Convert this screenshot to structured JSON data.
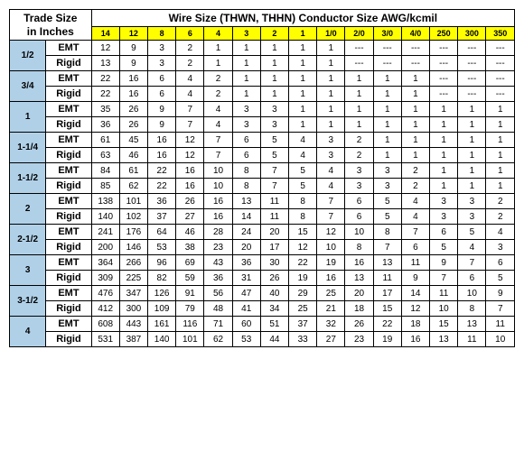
{
  "title_left": "Trade Size\nin Inches",
  "title_right": "Wire Size (THWN, THHN) Conductor Size AWG/kcmil",
  "wire_sizes": [
    "14",
    "12",
    "8",
    "6",
    "4",
    "3",
    "2",
    "1",
    "1/0",
    "2/0",
    "3/0",
    "4/0",
    "250",
    "300",
    "350"
  ],
  "colors": {
    "header_bg": "#ffff00",
    "trade_bg": "#b0d0e8",
    "border": "#000000"
  },
  "groups": [
    {
      "trade": "1/2",
      "rows": [
        {
          "type": "EMT",
          "vals": [
            "12",
            "9",
            "3",
            "2",
            "1",
            "1",
            "1",
            "1",
            "1",
            "---",
            "---",
            "---",
            "---",
            "---",
            "---"
          ]
        },
        {
          "type": "Rigid",
          "vals": [
            "13",
            "9",
            "3",
            "2",
            "1",
            "1",
            "1",
            "1",
            "1",
            "---",
            "---",
            "---",
            "---",
            "---",
            "---"
          ]
        }
      ]
    },
    {
      "trade": "3/4",
      "rows": [
        {
          "type": "EMT",
          "vals": [
            "22",
            "16",
            "6",
            "4",
            "2",
            "1",
            "1",
            "1",
            "1",
            "1",
            "1",
            "1",
            "---",
            "---",
            "---"
          ]
        },
        {
          "type": "Rigid",
          "vals": [
            "22",
            "16",
            "6",
            "4",
            "2",
            "1",
            "1",
            "1",
            "1",
            "1",
            "1",
            "1",
            "---",
            "---",
            "---"
          ]
        }
      ]
    },
    {
      "trade": "1",
      "rows": [
        {
          "type": "EMT",
          "vals": [
            "35",
            "26",
            "9",
            "7",
            "4",
            "3",
            "3",
            "1",
            "1",
            "1",
            "1",
            "1",
            "1",
            "1",
            "1"
          ]
        },
        {
          "type": "Rigid",
          "vals": [
            "36",
            "26",
            "9",
            "7",
            "4",
            "3",
            "3",
            "1",
            "1",
            "1",
            "1",
            "1",
            "1",
            "1",
            "1"
          ]
        }
      ]
    },
    {
      "trade": "1-1/4",
      "rows": [
        {
          "type": "EMT",
          "vals": [
            "61",
            "45",
            "16",
            "12",
            "7",
            "6",
            "5",
            "4",
            "3",
            "2",
            "1",
            "1",
            "1",
            "1",
            "1"
          ]
        },
        {
          "type": "Rigid",
          "vals": [
            "63",
            "46",
            "16",
            "12",
            "7",
            "6",
            "5",
            "4",
            "3",
            "2",
            "1",
            "1",
            "1",
            "1",
            "1"
          ]
        }
      ]
    },
    {
      "trade": "1-1/2",
      "rows": [
        {
          "type": "EMT",
          "vals": [
            "84",
            "61",
            "22",
            "16",
            "10",
            "8",
            "7",
            "5",
            "4",
            "3",
            "3",
            "2",
            "1",
            "1",
            "1"
          ]
        },
        {
          "type": "Rigid",
          "vals": [
            "85",
            "62",
            "22",
            "16",
            "10",
            "8",
            "7",
            "5",
            "4",
            "3",
            "3",
            "2",
            "1",
            "1",
            "1"
          ]
        }
      ]
    },
    {
      "trade": "2",
      "rows": [
        {
          "type": "EMT",
          "vals": [
            "138",
            "101",
            "36",
            "26",
            "16",
            "13",
            "11",
            "8",
            "7",
            "6",
            "5",
            "4",
            "3",
            "3",
            "2"
          ]
        },
        {
          "type": "Rigid",
          "vals": [
            "140",
            "102",
            "37",
            "27",
            "16",
            "14",
            "11",
            "8",
            "7",
            "6",
            "5",
            "4",
            "3",
            "3",
            "2"
          ]
        }
      ]
    },
    {
      "trade": "2-1/2",
      "rows": [
        {
          "type": "EMT",
          "vals": [
            "241",
            "176",
            "64",
            "46",
            "28",
            "24",
            "20",
            "15",
            "12",
            "10",
            "8",
            "7",
            "6",
            "5",
            "4"
          ]
        },
        {
          "type": "Rigid",
          "vals": [
            "200",
            "146",
            "53",
            "38",
            "23",
            "20",
            "17",
            "12",
            "10",
            "8",
            "7",
            "6",
            "5",
            "4",
            "3"
          ]
        }
      ]
    },
    {
      "trade": "3",
      "rows": [
        {
          "type": "EMT",
          "vals": [
            "364",
            "266",
            "96",
            "69",
            "43",
            "36",
            "30",
            "22",
            "19",
            "16",
            "13",
            "11",
            "9",
            "7",
            "6"
          ]
        },
        {
          "type": "Rigid",
          "vals": [
            "309",
            "225",
            "82",
            "59",
            "36",
            "31",
            "26",
            "19",
            "16",
            "13",
            "11",
            "9",
            "7",
            "6",
            "5"
          ]
        }
      ]
    },
    {
      "trade": "3-1/2",
      "rows": [
        {
          "type": "EMT",
          "vals": [
            "476",
            "347",
            "126",
            "91",
            "56",
            "47",
            "40",
            "29",
            "25",
            "20",
            "17",
            "14",
            "11",
            "10",
            "9"
          ]
        },
        {
          "type": "Rigid",
          "vals": [
            "412",
            "300",
            "109",
            "79",
            "48",
            "41",
            "34",
            "25",
            "21",
            "18",
            "15",
            "12",
            "10",
            "8",
            "7"
          ]
        }
      ]
    },
    {
      "trade": "4",
      "rows": [
        {
          "type": "EMT",
          "vals": [
            "608",
            "443",
            "161",
            "116",
            "71",
            "60",
            "51",
            "37",
            "32",
            "26",
            "22",
            "18",
            "15",
            "13",
            "11"
          ]
        },
        {
          "type": "Rigid",
          "vals": [
            "531",
            "387",
            "140",
            "101",
            "62",
            "53",
            "44",
            "33",
            "27",
            "23",
            "19",
            "16",
            "13",
            "11",
            "10"
          ]
        }
      ]
    }
  ]
}
